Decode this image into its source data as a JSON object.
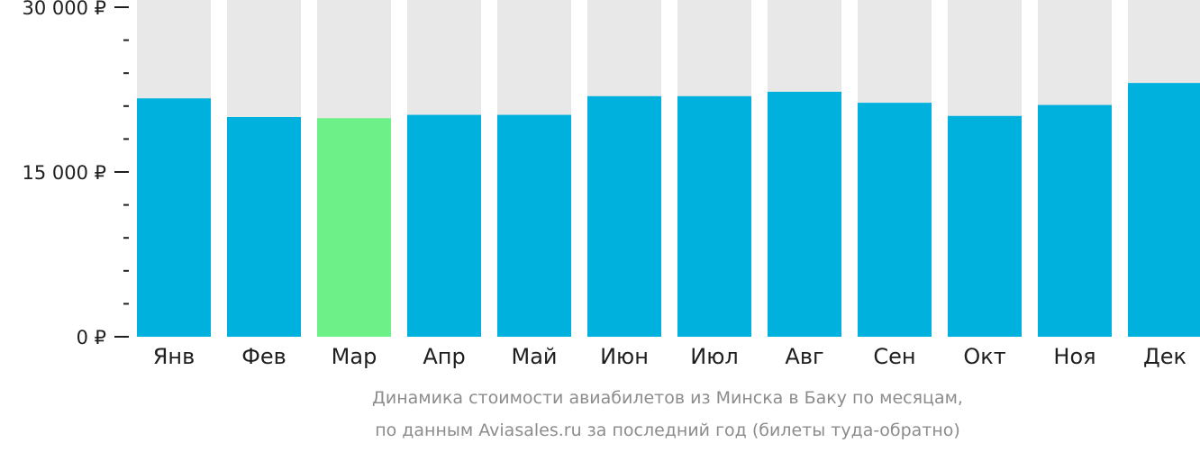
{
  "chart_data": {
    "type": "bar",
    "categories": [
      "Янв",
      "Фев",
      "Мар",
      "Апр",
      "Май",
      "Июн",
      "Июл",
      "Авг",
      "Сен",
      "Окт",
      "Ноя",
      "Дек"
    ],
    "values": [
      21700,
      20000,
      19900,
      20200,
      20200,
      21900,
      21900,
      22300,
      21300,
      20100,
      21100,
      23100
    ],
    "highlight_index": 2,
    "ylim": [
      0,
      30000
    ],
    "y_ticks": [
      {
        "value": 0,
        "label": "0 ₽"
      },
      {
        "value": 15000,
        "label": "15 000 ₽"
      },
      {
        "value": 30000,
        "label": "30 000 ₽"
      }
    ],
    "minor_tick_step": 3000,
    "colors": {
      "bar": "#00b0dd",
      "highlight": "#6df088",
      "background_bar": "#e8e8e8",
      "axis": "#1f1f1f"
    },
    "caption_line1": "Динамика стоимости авиабилетов из Минска в Баку по месяцам,",
    "caption_line2": "по данным Aviasales.ru за последний год (билеты туда-обратно)"
  }
}
